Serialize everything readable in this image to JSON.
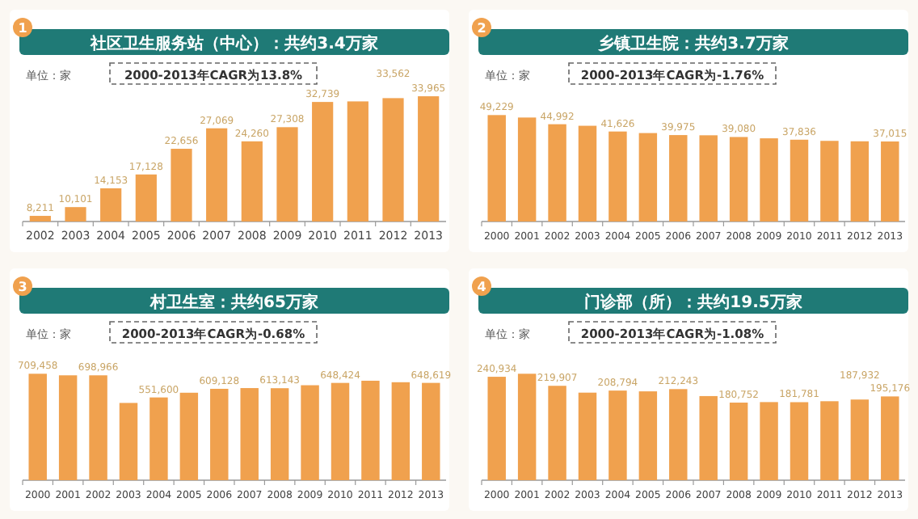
{
  "chart_data": [
    {
      "type": "bar",
      "title": "社区卫生服务站（中心）：共约3.4万家",
      "annotations": [
        "1",
        "单位：家",
        "2000-2013年CAGR为13.8%"
      ],
      "categories": [
        "2002",
        "2003",
        "2004",
        "2005",
        "2006",
        "2007",
        "2008",
        "2009",
        "2010",
        "2011",
        "2012",
        "2013"
      ],
      "ylim": [
        7000,
        34500
      ],
      "color": "#f0a14e",
      "values": [
        8211,
        10101,
        14153,
        17128,
        22656,
        27069,
        24260,
        27308,
        32739,
        32860,
        33562,
        33965
      ],
      "value_labels": [
        "8,211",
        "10,101",
        "14,153",
        "17,128",
        "22,656",
        "27,069",
        "24,260",
        "27,308",
        "32,739",
        null,
        "33,562",
        "33,965"
      ]
    },
    {
      "type": "bar",
      "title": "乡镇卫生院：共约3.7万家",
      "annotations": [
        "2",
        "单位：家",
        "2000-2013年CAGR为-1.76%"
      ],
      "categories": [
        "2000",
        "2001",
        "2002",
        "2003",
        "2004",
        "2005",
        "2006",
        "2007",
        "2008",
        "2009",
        "2010",
        "2011",
        "2012",
        "2013"
      ],
      "color": "#f0a14e",
      "values": [
        49229,
        48090,
        44992,
        44279,
        41626,
        40907,
        39975,
        39876,
        39080,
        38475,
        37836,
        37295,
        37097,
        37015
      ],
      "value_labels": [
        "49,229",
        null,
        "44,992",
        null,
        "41,626",
        null,
        "39,975",
        null,
        "39,080",
        null,
        "37,836",
        null,
        null,
        "37,015"
      ]
    },
    {
      "type": "bar",
      "title": "村卫生室：共约65万家",
      "annotations": [
        "3",
        "单位：家",
        "2000-2013年CAGR为-0.68%"
      ],
      "categories": [
        "2000",
        "2001",
        "2002",
        "2003",
        "2004",
        "2005",
        "2006",
        "2007",
        "2008",
        "2009",
        "2010",
        "2011",
        "2012",
        "2013"
      ],
      "color": "#f0a14e",
      "values": [
        709458,
        699000,
        698966,
        515000,
        551600,
        583000,
        609128,
        614000,
        613143,
        633000,
        648424,
        663000,
        653000,
        648619
      ],
      "value_labels": [
        "709,458",
        null,
        "698,966",
        null,
        "551,600",
        null,
        "609,128",
        null,
        "613,143",
        null,
        "648,424",
        null,
        null,
        "648,619"
      ]
    },
    {
      "type": "bar",
      "title": "门诊部（所）：共约19.5万家",
      "annotations": [
        "4",
        "单位：家",
        "2000-2013年CAGR为-1.08%"
      ],
      "categories": [
        "2000",
        "2001",
        "2002",
        "2003",
        "2004",
        "2005",
        "2006",
        "2007",
        "2008",
        "2009",
        "2010",
        "2011",
        "2012",
        "2013"
      ],
      "color": "#f0a14e",
      "values": [
        240934,
        248000,
        219907,
        204000,
        208794,
        207000,
        212243,
        196000,
        180752,
        182000,
        181781,
        184000,
        187932,
        195176
      ],
      "value_labels": [
        "240,934",
        null,
        "219,907",
        null,
        "208,794",
        null,
        "212,243",
        null,
        "180,752",
        null,
        "181,781",
        null,
        "187,932",
        "195,176"
      ]
    }
  ]
}
